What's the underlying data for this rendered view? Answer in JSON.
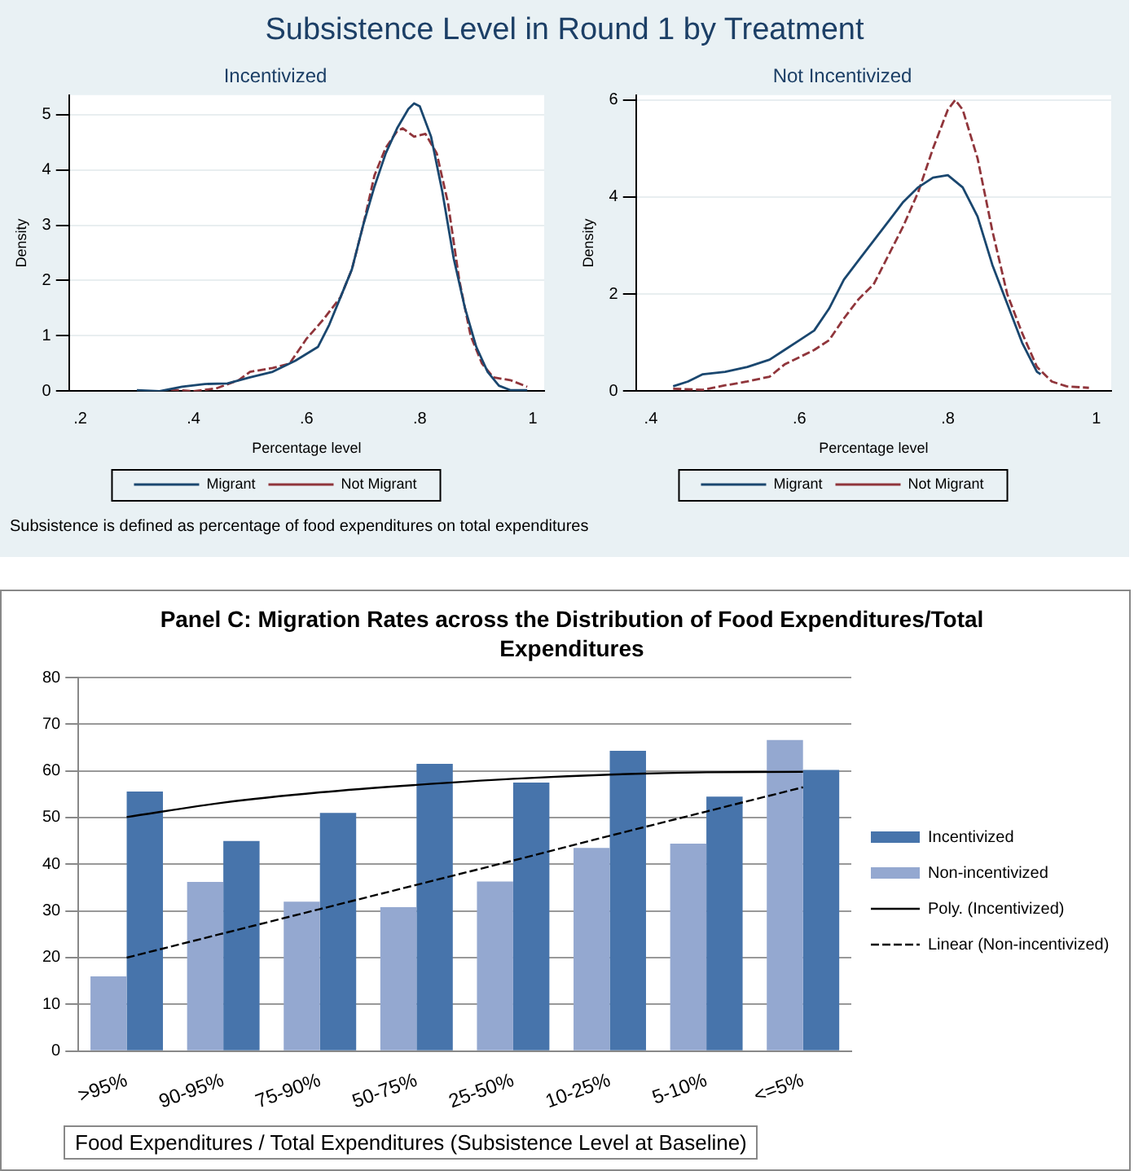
{
  "chart_data": [
    {
      "type": "line",
      "title": "Subsistence Level in Round 1 by Treatment",
      "subtitle": "Incentivized",
      "xlabel": "Percentage level",
      "ylabel": "Density",
      "xlim": [
        0.18,
        1.02
      ],
      "xticks": [
        {
          "value": 0.2,
          "label": ".2"
        },
        {
          "value": 0.4,
          "label": ".4"
        },
        {
          "value": 0.6,
          "label": ".6"
        },
        {
          "value": 0.8,
          "label": ".8"
        },
        1
      ],
      "ylim": [
        0,
        5.35
      ],
      "yticks": [
        0,
        1,
        2,
        3,
        4,
        5
      ],
      "grid": "y",
      "legend": "bottom",
      "annotations": [
        "Subsistence is defined as percentage of food expenditures on total expenditures"
      ],
      "series": [
        {
          "name": "Migrant",
          "color": "#1a476f",
          "line_style": "solid",
          "x": [
            0.3,
            0.34,
            0.38,
            0.42,
            0.46,
            0.5,
            0.54,
            0.58,
            0.62,
            0.64,
            0.66,
            0.68,
            0.7,
            0.72,
            0.74,
            0.76,
            0.78,
            0.79,
            0.8,
            0.82,
            0.84,
            0.86,
            0.88,
            0.9,
            0.92,
            0.94,
            0.96,
            0.99
          ],
          "values": [
            0.02,
            0.0,
            0.08,
            0.13,
            0.14,
            0.25,
            0.35,
            0.55,
            0.8,
            1.2,
            1.7,
            2.2,
            3.0,
            3.7,
            4.3,
            4.75,
            5.1,
            5.2,
            5.15,
            4.6,
            3.6,
            2.4,
            1.5,
            0.8,
            0.35,
            0.1,
            0.02,
            0.02
          ]
        },
        {
          "name": "Not Migrant",
          "color": "#90353b",
          "line_style": "dashed",
          "x": [
            0.36,
            0.4,
            0.44,
            0.48,
            0.5,
            0.54,
            0.57,
            0.6,
            0.63,
            0.66,
            0.68,
            0.7,
            0.72,
            0.74,
            0.76,
            0.77,
            0.79,
            0.81,
            0.83,
            0.85,
            0.87,
            0.89,
            0.91,
            0.93,
            0.96,
            0.99
          ],
          "values": [
            0.03,
            0.0,
            0.05,
            0.2,
            0.35,
            0.42,
            0.5,
            0.95,
            1.3,
            1.7,
            2.2,
            3.0,
            3.9,
            4.4,
            4.7,
            4.75,
            4.6,
            4.65,
            4.3,
            3.4,
            2.0,
            1.0,
            0.5,
            0.25,
            0.2,
            0.08
          ]
        }
      ]
    },
    {
      "type": "line",
      "subtitle": "Not Incentivized",
      "xlabel": "Percentage level",
      "ylabel": "Density",
      "xlim": [
        0.38,
        1.02
      ],
      "xticks": [
        {
          "value": 0.4,
          "label": ".4"
        },
        {
          "value": 0.6,
          "label": ".6"
        },
        {
          "value": 0.8,
          "label": ".8"
        },
        1
      ],
      "ylim": [
        0,
        6.1
      ],
      "yticks": [
        0,
        2,
        4,
        6
      ],
      "grid": "y",
      "legend": "bottom",
      "series": [
        {
          "name": "Migrant",
          "color": "#1a476f",
          "line_style": "solid",
          "x": [
            0.43,
            0.45,
            0.47,
            0.5,
            0.53,
            0.56,
            0.58,
            0.6,
            0.62,
            0.64,
            0.66,
            0.68,
            0.7,
            0.72,
            0.74,
            0.76,
            0.78,
            0.8,
            0.82,
            0.84,
            0.86,
            0.88,
            0.9,
            0.92,
            0.925
          ],
          "values": [
            0.1,
            0.2,
            0.35,
            0.4,
            0.5,
            0.65,
            0.85,
            1.05,
            1.25,
            1.7,
            2.3,
            2.7,
            3.1,
            3.5,
            3.9,
            4.2,
            4.4,
            4.45,
            4.2,
            3.6,
            2.6,
            1.8,
            1.0,
            0.4,
            0.35
          ]
        },
        {
          "name": "Not Migrant",
          "color": "#90353b",
          "line_style": "dashed",
          "x": [
            0.43,
            0.47,
            0.5,
            0.53,
            0.56,
            0.58,
            0.6,
            0.62,
            0.64,
            0.66,
            0.68,
            0.7,
            0.72,
            0.74,
            0.76,
            0.78,
            0.8,
            0.81,
            0.82,
            0.84,
            0.86,
            0.88,
            0.9,
            0.92,
            0.94,
            0.96,
            0.99
          ],
          "values": [
            0.05,
            0.03,
            0.12,
            0.2,
            0.3,
            0.55,
            0.7,
            0.85,
            1.05,
            1.5,
            1.9,
            2.2,
            2.8,
            3.4,
            4.1,
            5.0,
            5.8,
            6.0,
            5.8,
            4.8,
            3.3,
            2.0,
            1.2,
            0.5,
            0.2,
            0.1,
            0.07
          ]
        }
      ]
    },
    {
      "type": "bar",
      "title": "Panel C: Migration Rates across the Distribution of Food Expenditures/Total Expenditures",
      "xlabel": "Food Expenditures / Total Expenditures (Subsistence Level  at Baseline)",
      "categories": [
        ">95%",
        "90-95%",
        "75-90%",
        "50-75%",
        "25-50%",
        "10-25%",
        "5-10%",
        "<=5%"
      ],
      "ylim": [
        0,
        80
      ],
      "yticks": [
        0,
        10,
        20,
        30,
        40,
        50,
        60,
        70,
        80
      ],
      "grid": "y",
      "legend": "right",
      "series": [
        {
          "name": "Incentivized",
          "color": "#4774ab",
          "values": [
            55.6,
            45,
            51,
            61.5,
            57.5,
            64.3,
            54.5,
            60.2
          ]
        },
        {
          "name": "Non-incentivized",
          "color": "#94a8d0",
          "values": [
            16,
            36.2,
            32,
            30.8,
            36.3,
            43.5,
            44.4,
            66.6
          ]
        },
        {
          "name": "Poly. (Incentivized)",
          "type": "line",
          "color": "#000000",
          "line_style": "solid",
          "values": [
            50.1,
            53.2,
            55.4,
            57,
            58.3,
            59.2,
            59.7,
            59.8
          ]
        },
        {
          "name": "Linear (Non-incentivized)",
          "type": "line",
          "color": "#000000",
          "line_style": "dashed",
          "values": [
            20,
            25.2,
            30.4,
            35.6,
            40.8,
            46.1,
            51.3,
            56.5
          ]
        }
      ]
    }
  ]
}
